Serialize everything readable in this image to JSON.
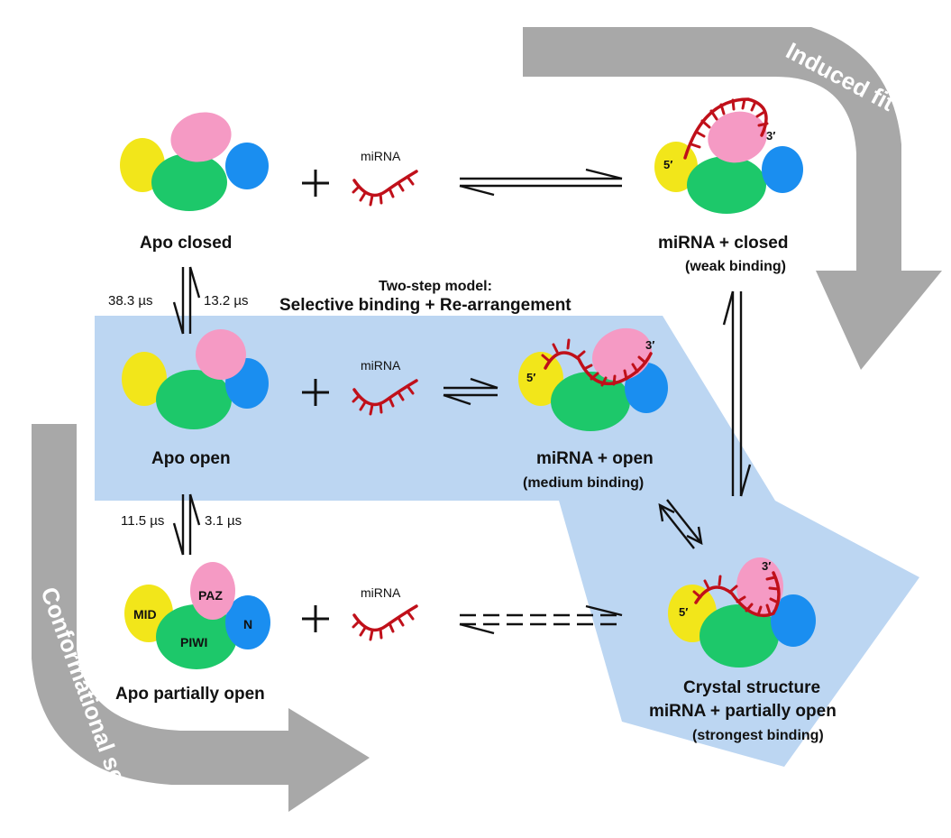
{
  "labels": {
    "apo_closed": "Apo closed",
    "apo_open": "Apo open",
    "apo_partially_open": "Apo partially open",
    "mirna_closed": "miRNA + closed",
    "mirna_closed_sub": "(weak binding)",
    "mirna_open": "miRNA + open",
    "mirna_open_sub": "(medium binding)",
    "crystal_line1": "Crystal structure",
    "crystal_line2": "miRNA + partially open",
    "crystal_sub": "(strongest binding)",
    "two_step_line1": "Two-step model:",
    "two_step_line2": "Selective binding + Re-arrangement",
    "mirna_1": "miRNA",
    "mirna_2": "miRNA",
    "mirna_3": "miRNA",
    "induced_fit": "Induced fit",
    "conformational_selection": "Conformational selection"
  },
  "rates": {
    "closed_open_left": "38.3 µs",
    "closed_open_right": "13.2 µs",
    "open_partial_left": "11.5 µs",
    "open_partial_right": "3.1 µs"
  },
  "domains": {
    "mid": "MID",
    "paz": "PAZ",
    "piwi": "PIWI",
    "n": "N"
  },
  "primes": {
    "five": "5′",
    "three": "3′"
  },
  "colors": {
    "mid": "#f2e61a",
    "paz": "#f59ac4",
    "piwi": "#1dc86a",
    "n": "#1a8ef0",
    "mirna": "#c0101a",
    "blue_region": "#bcd6f2",
    "gray_arrow": "#a8a8a8"
  }
}
